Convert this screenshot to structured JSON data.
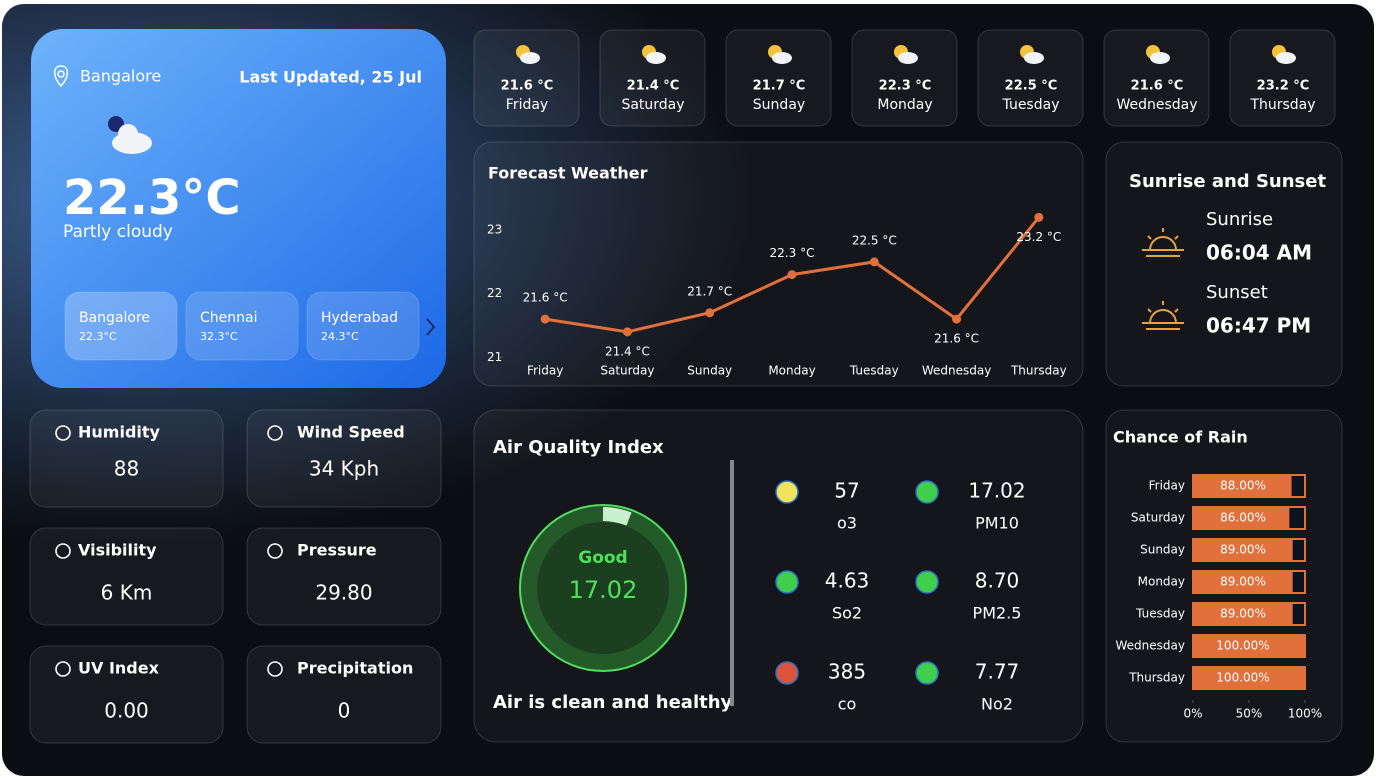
{
  "current": {
    "city": "Bangalore",
    "updated": "Last Updated, 25 Jul",
    "temp": "22.3°C",
    "condition": "Partly cloudy"
  },
  "cities": [
    {
      "name": "Bangalore",
      "temp": "22.3°C"
    },
    {
      "name": "Chennai",
      "temp": "32.3°C"
    },
    {
      "name": "Hyderabad",
      "temp": "24.3°C"
    }
  ],
  "daily": [
    {
      "temp": "21.6 °C",
      "day": "Friday"
    },
    {
      "temp": "21.4 °C",
      "day": "Saturday"
    },
    {
      "temp": "21.7 °C",
      "day": "Sunday"
    },
    {
      "temp": "22.3 °C",
      "day": "Monday"
    },
    {
      "temp": "22.5 °C",
      "day": "Tuesday"
    },
    {
      "temp": "21.6 °C",
      "day": "Wednesday"
    },
    {
      "temp": "23.2 °C",
      "day": "Thursday"
    }
  ],
  "forecast_chart": {
    "type": "line",
    "title": "Forecast Weather",
    "categories": [
      "Friday",
      "Saturday",
      "Sunday",
      "Monday",
      "Tuesday",
      "Wednesday",
      "Thursday"
    ],
    "values": [
      21.6,
      21.4,
      21.7,
      22.3,
      22.5,
      21.6,
      23.2
    ],
    "value_labels": [
      "21.6 °C",
      "21.4 °C",
      "21.7 °C",
      "22.3 °C",
      "22.5 °C",
      "21.6 °C",
      "23.2 °C"
    ],
    "color": "#e2703a",
    "ylim": [
      20.8,
      23.3
    ],
    "yticks": [
      21,
      22,
      23
    ]
  },
  "sun": {
    "title": "Sunrise and Sunset",
    "sunrise_label": "Sunrise",
    "sunrise": "06:04 AM",
    "sunset_label": "Sunset",
    "sunset": "06:47 PM"
  },
  "metrics": [
    {
      "label": "Humidity",
      "value": "88"
    },
    {
      "label": "Wind Speed",
      "value": "34 Kph"
    },
    {
      "label": "Visibility",
      "value": "6 Km"
    },
    {
      "label": "Pressure",
      "value": "29.80"
    },
    {
      "label": "UV Index",
      "value": "0.00"
    },
    {
      "label": "Precipitation",
      "value": "0"
    }
  ],
  "aqi": {
    "title": "Air Quality Index",
    "status": "Good",
    "value": "17.02",
    "message": "Air is clean and healthy",
    "pollutants": [
      {
        "value": "57",
        "name": "o3",
        "color": "#f2e35c"
      },
      {
        "value": "17.02",
        "name": "PM10",
        "color": "#3fcf4a"
      },
      {
        "value": "4.63",
        "name": "So2",
        "color": "#3fcf4a"
      },
      {
        "value": "8.70",
        "name": "PM2.5",
        "color": "#3fcf4a"
      },
      {
        "value": "385",
        "name": "co",
        "color": "#d9533d"
      },
      {
        "value": "7.77",
        "name": "No2",
        "color": "#3fcf4a"
      }
    ]
  },
  "rain_chart": {
    "type": "bar",
    "title": "Chance of Rain",
    "categories": [
      "Friday",
      "Saturday",
      "Sunday",
      "Monday",
      "Tuesday",
      "Wednesday",
      "Thursday"
    ],
    "values": [
      88,
      86,
      89,
      89,
      89,
      100,
      100
    ],
    "value_labels": [
      "88.00%",
      "86.00%",
      "89.00%",
      "89.00%",
      "89.00%",
      "100.00%",
      "100.00%"
    ],
    "color": "#e2703a",
    "xlim": [
      0,
      100
    ],
    "xticks": [
      {
        "value": 0,
        "label": "0%"
      },
      {
        "value": 50,
        "label": "50%"
      },
      {
        "value": 100,
        "label": "100%"
      }
    ]
  }
}
